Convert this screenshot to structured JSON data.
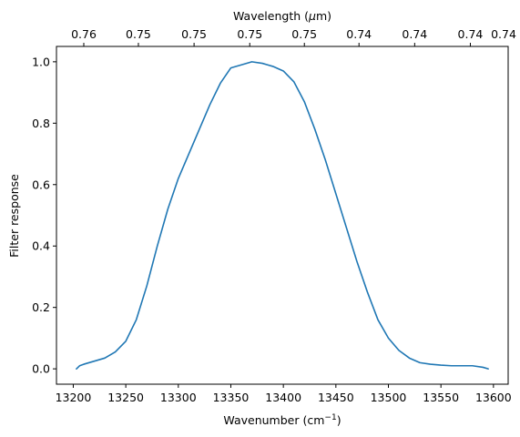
{
  "chart_data": {
    "type": "line",
    "xlabel_main": "Wavenumber (cm",
    "xlabel_sup": "−1",
    "xlabel_end": ")",
    "ylabel": "Filter response",
    "top_xlabel_pre": "Wavelength (",
    "top_xlabel_mu": "μ",
    "top_xlabel_post": "m)",
    "xlim": [
      13184,
      13614
    ],
    "ylim": [
      -0.05,
      1.05
    ],
    "x_ticks": [
      {
        "value": 13200,
        "label": "13200"
      },
      {
        "value": 13250,
        "label": "13250"
      },
      {
        "value": 13300,
        "label": "13300"
      },
      {
        "value": 13350,
        "label": "13350"
      },
      {
        "value": 13400,
        "label": "13400"
      },
      {
        "value": 13450,
        "label": "13450"
      },
      {
        "value": 13500,
        "label": "13500"
      },
      {
        "value": 13550,
        "label": "13550"
      },
      {
        "value": 13600,
        "label": "13600"
      }
    ],
    "y_ticks": [
      {
        "value": 0.0,
        "label": "0.0"
      },
      {
        "value": 0.2,
        "label": "0.2"
      },
      {
        "value": 0.4,
        "label": "0.4"
      },
      {
        "value": 0.6,
        "label": "0.6"
      },
      {
        "value": 0.8,
        "label": "0.8"
      },
      {
        "value": 1.0,
        "label": "1.0"
      }
    ],
    "top_ticks": [
      {
        "value": 13210,
        "label": "0.76"
      },
      {
        "value": 13262,
        "label": "0.75"
      },
      {
        "value": 13315,
        "label": "0.75"
      },
      {
        "value": 13368,
        "label": "0.75"
      },
      {
        "value": 13420,
        "label": "0.75"
      },
      {
        "value": 13472,
        "label": "0.74"
      },
      {
        "value": 13525,
        "label": "0.74"
      },
      {
        "value": 13578,
        "label": "0.74"
      },
      {
        "value": 13627,
        "label": "0.74"
      }
    ],
    "series": [
      {
        "color": "#1f77b4",
        "x": [
          13203,
          13206,
          13210,
          13220,
          13230,
          13240,
          13250,
          13260,
          13270,
          13280,
          13290,
          13300,
          13310,
          13320,
          13330,
          13340,
          13350,
          13360,
          13370,
          13380,
          13385,
          13390,
          13400,
          13410,
          13420,
          13430,
          13440,
          13450,
          13460,
          13470,
          13480,
          13490,
          13500,
          13510,
          13520,
          13530,
          13540,
          13550,
          13560,
          13570,
          13580,
          13590,
          13595
        ],
        "y": [
          0.0,
          0.01,
          0.015,
          0.025,
          0.035,
          0.055,
          0.09,
          0.16,
          0.27,
          0.4,
          0.52,
          0.62,
          0.7,
          0.78,
          0.86,
          0.93,
          0.98,
          0.99,
          1.0,
          0.995,
          0.99,
          0.985,
          0.97,
          0.935,
          0.87,
          0.78,
          0.68,
          0.57,
          0.46,
          0.35,
          0.25,
          0.16,
          0.1,
          0.06,
          0.035,
          0.02,
          0.015,
          0.012,
          0.01,
          0.01,
          0.01,
          0.005,
          0.0
        ]
      }
    ]
  }
}
